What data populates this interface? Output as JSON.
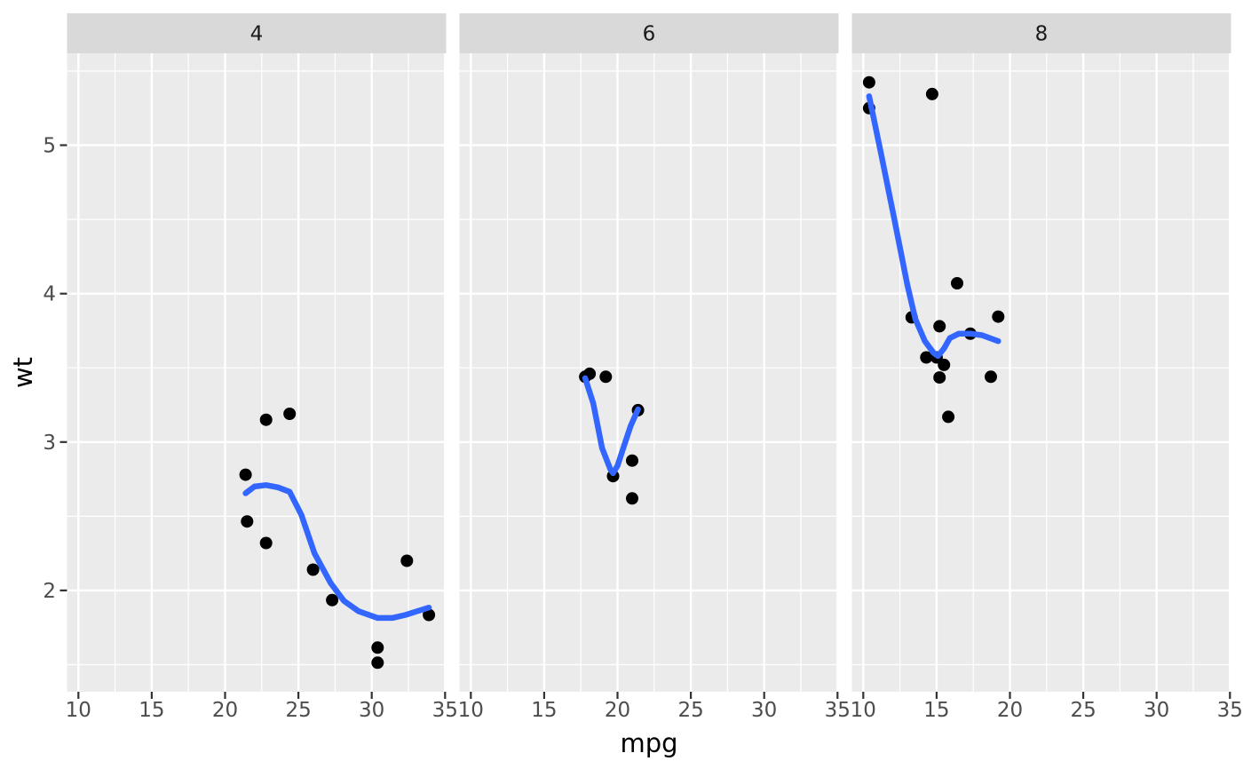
{
  "chart_data": {
    "type": "scatter",
    "title": "",
    "xlabel": "mpg",
    "ylabel": "wt",
    "facet_labels": [
      "4",
      "6",
      "8"
    ],
    "legend": "none",
    "grid": "major and minor white gridlines on gray panels",
    "x_domain": [
      9.225,
      35.075
    ],
    "y_domain": [
      1.3175,
      5.6195
    ],
    "x_ticks": [
      10,
      15,
      20,
      25,
      30,
      35
    ],
    "y_ticks": [
      2,
      3,
      4,
      5
    ],
    "x_minor_ticks": [
      12.5,
      17.5,
      22.5,
      27.5,
      32.5
    ],
    "y_minor_ticks": [
      1.5,
      2.5,
      3.5,
      4.5,
      5.5
    ],
    "series": [
      {
        "facet": "4",
        "points": [
          [
            22.8,
            2.32
          ],
          [
            24.4,
            3.19
          ],
          [
            22.8,
            3.15
          ],
          [
            32.4,
            2.2
          ],
          [
            30.4,
            1.615
          ],
          [
            33.9,
            1.835
          ],
          [
            21.5,
            2.465
          ],
          [
            27.3,
            1.935
          ],
          [
            26.0,
            2.14
          ],
          [
            30.4,
            1.513
          ],
          [
            21.4,
            2.78
          ]
        ],
        "smooth": [
          [
            21.4,
            2.655
          ],
          [
            22.0,
            2.7
          ],
          [
            22.8,
            2.71
          ],
          [
            23.6,
            2.695
          ],
          [
            24.4,
            2.665
          ],
          [
            25.2,
            2.51
          ],
          [
            26.1,
            2.25
          ],
          [
            27.2,
            2.05
          ],
          [
            28.1,
            1.93
          ],
          [
            29.1,
            1.86
          ],
          [
            30.4,
            1.815
          ],
          [
            31.4,
            1.815
          ],
          [
            32.3,
            1.835
          ],
          [
            33.1,
            1.86
          ],
          [
            33.9,
            1.885
          ]
        ]
      },
      {
        "facet": "6",
        "points": [
          [
            21.0,
            2.62
          ],
          [
            21.0,
            2.875
          ],
          [
            21.4,
            3.215
          ],
          [
            18.1,
            3.46
          ],
          [
            19.2,
            3.44
          ],
          [
            17.8,
            3.44
          ],
          [
            19.7,
            2.77
          ]
        ],
        "smooth": [
          [
            17.8,
            3.43
          ],
          [
            18.35,
            3.26
          ],
          [
            18.95,
            2.96
          ],
          [
            19.5,
            2.82
          ],
          [
            19.7,
            2.79
          ],
          [
            20.0,
            2.84
          ],
          [
            20.5,
            2.99
          ],
          [
            20.9,
            3.11
          ],
          [
            21.4,
            3.22
          ]
        ]
      },
      {
        "facet": "8",
        "points": [
          [
            18.7,
            3.44
          ],
          [
            14.3,
            3.57
          ],
          [
            16.4,
            4.07
          ],
          [
            17.3,
            3.73
          ],
          [
            15.2,
            3.78
          ],
          [
            10.4,
            5.25
          ],
          [
            10.4,
            5.424
          ],
          [
            14.7,
            5.345
          ],
          [
            15.5,
            3.52
          ],
          [
            15.2,
            3.435
          ],
          [
            13.3,
            3.84
          ],
          [
            19.2,
            3.845
          ],
          [
            15.8,
            3.17
          ],
          [
            15.0,
            3.57
          ]
        ],
        "smooth": [
          [
            10.4,
            5.33
          ],
          [
            11.2,
            4.95
          ],
          [
            12.1,
            4.51
          ],
          [
            13.0,
            4.06
          ],
          [
            13.55,
            3.83
          ],
          [
            14.2,
            3.68
          ],
          [
            14.8,
            3.6
          ],
          [
            15.1,
            3.58
          ],
          [
            15.5,
            3.63
          ],
          [
            15.9,
            3.7
          ],
          [
            16.5,
            3.73
          ],
          [
            17.35,
            3.73
          ],
          [
            18.1,
            3.72
          ],
          [
            19.2,
            3.68
          ]
        ]
      }
    ],
    "colors": {
      "page_background": "#FFFFFF",
      "panel_background": "#EBEBEB",
      "strip_background": "#D9D9D9",
      "grid_line": "#FFFFFF",
      "point": "#000000",
      "smooth_line": "#3366FF",
      "axis_tick": "#333333",
      "tick_label": "#4D4D4D",
      "strip_label": "#1A1A1A",
      "axis_title": "#000000"
    }
  }
}
